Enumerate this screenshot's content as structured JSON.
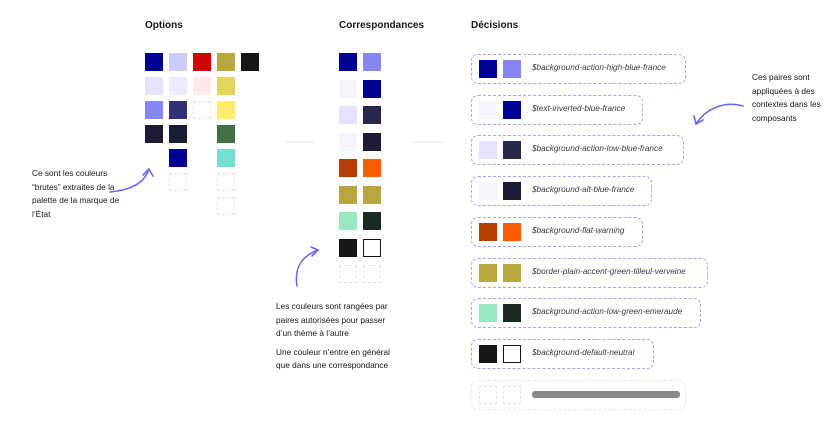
{
  "headings": {
    "options": "Options",
    "correspondances": "Correspondances",
    "decisions": "Décisions"
  },
  "colors": {
    "arrow": "#6a6af4",
    "dashed_border": "#a9a2f0",
    "placeholder_bar": "#8a8a8a"
  },
  "options": [
    [
      "#000091",
      "#cacafb",
      "#ce0500",
      "#b7a73f",
      "#161616"
    ],
    [
      "#e3e3fd",
      "#ececfe",
      "#fee9e9",
      "#e3d45c",
      null
    ],
    [
      "#8585f6",
      "#313178",
      "empty",
      "#fceb6d",
      null
    ],
    [
      "#1b1b35",
      "#1b1b35",
      null,
      "#447049",
      null
    ],
    [
      null,
      "#000091",
      null,
      "#73e0cf",
      null
    ],
    [
      null,
      "empty",
      null,
      "empty",
      null
    ],
    [
      null,
      null,
      null,
      "empty",
      null
    ]
  ],
  "correspondances": [
    [
      "#000091",
      "#8585f6"
    ],
    [
      "#f5f5fe",
      "#000091"
    ],
    [
      "#e3e3fd",
      "#272747"
    ],
    [
      "#f5f5fe",
      "#1b1b35"
    ],
    [
      "#b34000",
      "#fc5d00"
    ],
    [
      "#b7a73f",
      "#b7a73f"
    ],
    [
      "#98e9c0",
      "#1c2b22"
    ],
    [
      "#161616",
      "outline"
    ],
    [
      "empty",
      "empty"
    ]
  ],
  "decisions": [
    {
      "label": "$background-action-high-blue-france",
      "a": "#000091",
      "b": "#8585f6"
    },
    {
      "label": "$text-inverted-blue-france",
      "a": "#f5f5fe",
      "b": "#000091"
    },
    {
      "label": "$background-action-low-blue-france",
      "a": "#e3e3fd",
      "b": "#272747"
    },
    {
      "label": "$background-alt-blue-france",
      "a": "#f5f5fe",
      "b": "#1b1b35"
    },
    {
      "label": "$background-flat-warning",
      "a": "#b34000",
      "b": "#fc5d00"
    },
    {
      "label": "$border-plain-accent-green-tilleul-verveine",
      "a": "#b7a73f",
      "b": "#b7a73f"
    },
    {
      "label": "$background-action-low-green-emeraude",
      "a": "#98e9c0",
      "b": "#1c2b22"
    },
    {
      "label": "$background-default-neutral",
      "a": "#161616",
      "b": "outline"
    }
  ],
  "notes": {
    "left": "Ce sont les couleurs “brutes” extraites de la palette de la marque de l’État",
    "right": "Ces paires sont appliquées à des contextes dans les composants",
    "middle_1": "Les couleurs sont rangées par paires autorisées pour passer d’un thème à l’autre",
    "middle_2": "Une couleur n’entre en général que dans une correspondance"
  }
}
